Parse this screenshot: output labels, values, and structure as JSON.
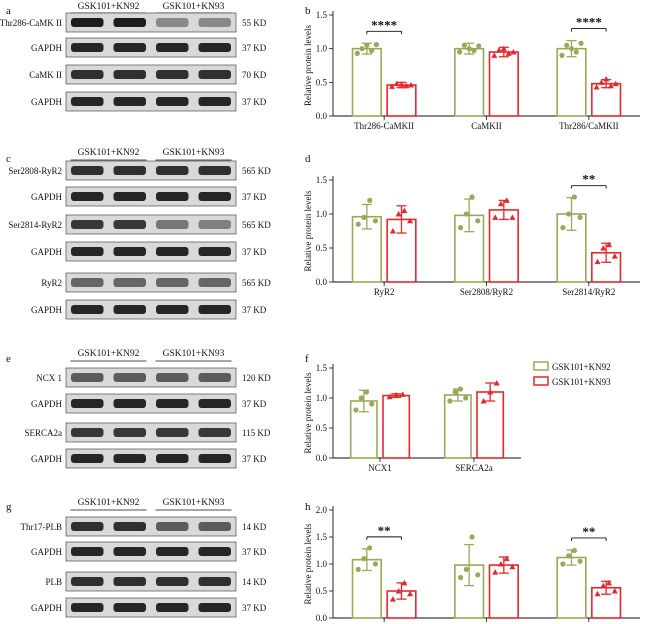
{
  "legend": {
    "items": [
      {
        "name": "GSK101+KN92",
        "color": "#9aa85a"
      },
      {
        "name": "GSK101+KN93",
        "color": "#e8262b"
      }
    ]
  },
  "blots": [
    {
      "letter": "a",
      "groups": [
        "GSK101+KN92",
        "GSK101+KN93"
      ],
      "rows": [
        {
          "label": "Thr286-CaMK II",
          "size": "55 KD",
          "intensity": [
            0.95,
            0.95,
            0.35,
            0.35
          ]
        },
        {
          "label": "GAPDH",
          "size": "37 KD",
          "intensity": [
            0.9,
            0.9,
            0.9,
            0.9
          ]
        },
        {
          "label": "CaMK II",
          "size": "70 KD",
          "intensity": [
            0.85,
            0.85,
            0.85,
            0.85
          ]
        },
        {
          "label": "GAPDH",
          "size": "37 KD",
          "intensity": [
            0.9,
            0.9,
            0.9,
            0.9
          ]
        }
      ]
    },
    {
      "letter": "c",
      "groups": [
        "GSK101+KN92",
        "GSK101+KN93"
      ],
      "rows": [
        {
          "label": "Ser2808-RyR2",
          "size": "565 KD",
          "intensity": [
            0.85,
            0.85,
            0.85,
            0.85
          ]
        },
        {
          "label": "GAPDH",
          "size": "37 KD",
          "intensity": [
            0.9,
            0.9,
            0.9,
            0.9
          ]
        },
        {
          "label": "Ser2814-RyR2",
          "size": "565 KD",
          "intensity": [
            0.8,
            0.8,
            0.45,
            0.4
          ]
        },
        {
          "label": "GAPDH",
          "size": "37 KD",
          "intensity": [
            0.9,
            0.9,
            0.9,
            0.9
          ]
        },
        {
          "label": "RyR2",
          "size": "565 KD",
          "intensity": [
            0.55,
            0.55,
            0.55,
            0.55
          ]
        },
        {
          "label": "GAPDH",
          "size": "37 KD",
          "intensity": [
            0.9,
            0.9,
            0.9,
            0.9
          ]
        }
      ]
    },
    {
      "letter": "e",
      "groups": [
        "GSK101+KN92",
        "GSK101+KN93"
      ],
      "rows": [
        {
          "label": "NCX 1",
          "size": "120 KD",
          "intensity": [
            0.6,
            0.6,
            0.6,
            0.6
          ]
        },
        {
          "label": "GAPDH",
          "size": "37 KD",
          "intensity": [
            0.9,
            0.9,
            0.9,
            0.9
          ]
        },
        {
          "label": "SERCA2a",
          "size": "115 KD",
          "intensity": [
            0.8,
            0.8,
            0.8,
            0.8
          ]
        },
        {
          "label": "GAPDH",
          "size": "37 KD",
          "intensity": [
            0.9,
            0.9,
            0.9,
            0.9
          ]
        }
      ]
    },
    {
      "letter": "g",
      "groups": [
        "GSK101+KN92",
        "GSK101+KN93"
      ],
      "rows": [
        {
          "label": "Thr17-PLB",
          "size": "14 KD",
          "intensity": [
            0.85,
            0.85,
            0.6,
            0.6
          ]
        },
        {
          "label": "GAPDH",
          "size": "37 KD",
          "intensity": [
            0.9,
            0.9,
            0.9,
            0.9
          ]
        },
        {
          "label": "PLB",
          "size": "14 KD",
          "intensity": [
            0.85,
            0.85,
            0.85,
            0.85
          ]
        },
        {
          "label": "GAPDH",
          "size": "37 KD",
          "intensity": [
            0.9,
            0.9,
            0.9,
            0.9
          ]
        }
      ]
    }
  ],
  "chart_data": [
    {
      "type": "bar",
      "letter": "b",
      "ylabel": "Relative protein levels",
      "ylim": [
        0,
        1.5
      ],
      "yticks": [
        "0.0",
        "0.5",
        "1.0",
        "1.5"
      ],
      "categories": [
        "Thr286-CaMKII",
        "CaMKII",
        "Thr286/CaMKII"
      ],
      "series": [
        {
          "name": "GSK101+KN92",
          "values": [
            1.0,
            1.0,
            1.0
          ],
          "err": [
            0.08,
            0.08,
            0.12
          ],
          "points": [
            [
              0.93,
              1.0,
              1.05,
              0.97,
              1.06
            ],
            [
              0.95,
              1.05,
              1.0,
              0.97,
              1.04
            ],
            [
              0.9,
              1.05,
              1.0,
              0.95,
              1.08
            ]
          ]
        },
        {
          "name": "GSK101+KN93",
          "values": [
            0.46,
            0.95,
            0.48
          ],
          "err": [
            0.04,
            0.07,
            0.06
          ],
          "points": [
            [
              0.44,
              0.48,
              0.47,
              0.45,
              0.46
            ],
            [
              0.9,
              0.98,
              1.0,
              0.93,
              0.95
            ],
            [
              0.43,
              0.5,
              0.55,
              0.45,
              0.48
            ]
          ]
        }
      ],
      "significance": [
        {
          "category": 0,
          "label": "****"
        },
        {
          "category": 2,
          "label": "****"
        }
      ]
    },
    {
      "type": "bar",
      "letter": "d",
      "ylabel": "Relative protein levels",
      "ylim": [
        0,
        1.5
      ],
      "yticks": [
        "0.0",
        "0.5",
        "1.0",
        "1.5"
      ],
      "categories": [
        "RyR2",
        "Ser2808/RyR2",
        "Ser2814/RyR2"
      ],
      "series": [
        {
          "name": "GSK101+KN92",
          "values": [
            0.96,
            0.98,
            1.0
          ],
          "err": [
            0.18,
            0.24,
            0.24
          ],
          "points": [
            [
              0.85,
              0.95,
              1.2,
              0.9
            ],
            [
              0.8,
              1.0,
              1.25,
              0.9
            ],
            [
              0.8,
              1.0,
              1.25,
              0.95
            ]
          ]
        },
        {
          "name": "GSK101+KN93",
          "values": [
            0.92,
            1.06,
            0.43
          ],
          "err": [
            0.2,
            0.14,
            0.14
          ],
          "points": [
            [
              0.75,
              1.0,
              1.05,
              0.9
            ],
            [
              0.95,
              1.15,
              1.2,
              0.95
            ],
            [
              0.3,
              0.5,
              0.55,
              0.38
            ]
          ]
        }
      ],
      "significance": [
        {
          "category": 2,
          "label": "**"
        }
      ]
    },
    {
      "type": "bar",
      "letter": "f",
      "ylabel": "Relative protein levels",
      "ylim": [
        0,
        1.5
      ],
      "yticks": [
        "0.0",
        "0.5",
        "1.0",
        "1.5"
      ],
      "categories": [
        "NCX1",
        "SERCA2a"
      ],
      "series": [
        {
          "name": "GSK101+KN92",
          "values": [
            0.95,
            1.05
          ],
          "err": [
            0.18,
            0.1
          ],
          "points": [
            [
              0.8,
              1.0,
              1.1,
              0.9
            ],
            [
              0.95,
              1.1,
              1.15,
              1.0
            ]
          ]
        },
        {
          "name": "GSK101+KN93",
          "values": [
            1.04,
            1.1
          ],
          "err": [
            0.03,
            0.15
          ],
          "points": [
            [
              1.02,
              1.05,
              1.06
            ],
            [
              0.95,
              1.1,
              1.25
            ]
          ]
        }
      ],
      "significance": []
    },
    {
      "type": "bar",
      "letter": "h",
      "ylabel": "Relative protein levels",
      "ylim": [
        0,
        2.0
      ],
      "yticks": [
        "0.0",
        "0.5",
        "1.0",
        "1.5",
        "2.0"
      ],
      "categories": [
        "Thr17-PLB",
        "PLB",
        "Thr17/PLB"
      ],
      "series": [
        {
          "name": "GSK101+KN92",
          "values": [
            1.08,
            0.98,
            1.12
          ],
          "err": [
            0.2,
            0.38,
            0.14
          ],
          "points": [
            [
              0.9,
              1.1,
              1.3,
              1.0
            ],
            [
              0.75,
              0.9,
              1.5,
              0.8
            ],
            [
              1.0,
              1.15,
              1.25,
              1.05
            ]
          ]
        },
        {
          "name": "GSK101+KN93",
          "values": [
            0.5,
            0.98,
            0.56
          ],
          "err": [
            0.15,
            0.15,
            0.12
          ],
          "points": [
            [
              0.35,
              0.5,
              0.65,
              0.45
            ],
            [
              0.85,
              1.0,
              1.1,
              0.95
            ],
            [
              0.45,
              0.6,
              0.65,
              0.5
            ]
          ]
        }
      ],
      "significance": [
        {
          "category": 0,
          "label": "**"
        },
        {
          "category": 2,
          "label": "**"
        }
      ]
    }
  ]
}
